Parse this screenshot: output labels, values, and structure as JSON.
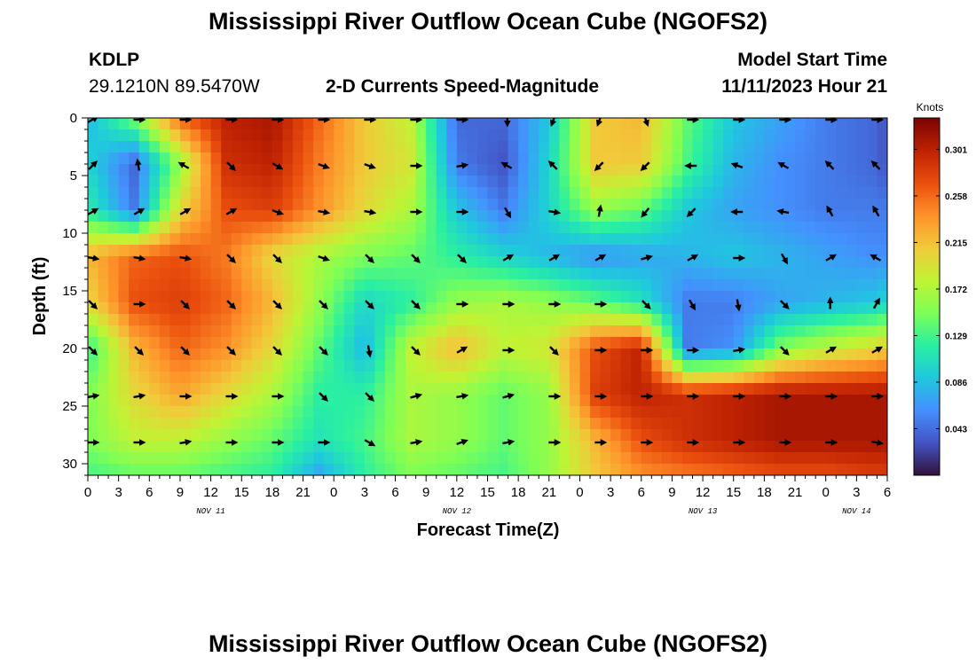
{
  "header": {
    "title": "Mississippi River Outflow Ocean Cube (NGOFS2)",
    "station_id": "KDLP",
    "station_coords": "29.1210N  89.5470W",
    "plot_name": "2-D Currents Speed-Magnitude",
    "model_start_label": "Model Start Time",
    "model_start_value": "11/11/2023 Hour 21"
  },
  "footer": {
    "title": "Mississippi River Outflow Ocean Cube (NGOFS2)"
  },
  "colors": {
    "scale": [
      "#30123b",
      "#4454c4",
      "#4490fe",
      "#1fc8de",
      "#29efa2",
      "#7dff56",
      "#c1f334",
      "#f1ca3a",
      "#fe922a",
      "#ea4e0d",
      "#be2102",
      "#7a0403"
    ]
  },
  "chart_data": {
    "type": "heatmap",
    "ylabel": "Depth (ft)",
    "xlabel": "Forecast Time(Z)",
    "x_tick_labels": [
      "0",
      "3",
      "6",
      "9",
      "12",
      "15",
      "18",
      "21",
      "0",
      "3",
      "6",
      "9",
      "12",
      "15",
      "18",
      "21",
      "0",
      "3",
      "6",
      "9",
      "12",
      "15",
      "18",
      "21",
      "0",
      "3",
      "6"
    ],
    "x_hours": [
      0,
      78
    ],
    "date_labels": [
      {
        "text": "NOV 11",
        "hour": 12
      },
      {
        "text": "NOV 12",
        "hour": 36
      },
      {
        "text": "NOV 13",
        "hour": 60
      },
      {
        "text": "NOV 14",
        "hour": 75
      }
    ],
    "y_ticks": [
      0,
      5,
      10,
      15,
      20,
      25,
      30
    ],
    "ylim": [
      0,
      31
    ],
    "colorbar": {
      "unit": "Knots",
      "ticks": [
        "0.301",
        "0.258",
        "0.215",
        "0.172",
        "0.129",
        "0.086",
        "0.043"
      ],
      "tick_values": [
        0.301,
        0.258,
        0.215,
        0.172,
        0.129,
        0.086,
        0.043
      ],
      "range": [
        0.0,
        0.33
      ]
    },
    "grid_hours": [
      0,
      4.5,
      9,
      13.5,
      18,
      22.5,
      27,
      31.5,
      36,
      40.5,
      45,
      49.5,
      54,
      58.5,
      63,
      67.5,
      72,
      76.5,
      78
    ],
    "grid_depths": [
      0,
      4,
      8,
      12,
      16,
      20,
      24,
      28,
      31
    ],
    "speed_grid": [
      [
        0.08,
        0.15,
        0.26,
        0.3,
        0.31,
        0.26,
        0.21,
        0.18,
        0.04,
        0.04,
        0.09,
        0.21,
        0.22,
        0.14,
        0.09,
        0.07,
        0.05,
        0.04,
        0.03
      ],
      [
        0.1,
        0.04,
        0.16,
        0.29,
        0.3,
        0.25,
        0.21,
        0.19,
        0.05,
        0.03,
        0.1,
        0.21,
        0.21,
        0.13,
        0.08,
        0.06,
        0.05,
        0.04,
        0.03
      ],
      [
        0.12,
        0.05,
        0.2,
        0.27,
        0.28,
        0.24,
        0.2,
        0.17,
        0.09,
        0.05,
        0.1,
        0.16,
        0.14,
        0.09,
        0.07,
        0.06,
        0.05,
        0.05,
        0.05
      ],
      [
        0.22,
        0.26,
        0.27,
        0.25,
        0.2,
        0.17,
        0.15,
        0.14,
        0.12,
        0.1,
        0.08,
        0.06,
        0.07,
        0.08,
        0.09,
        0.08,
        0.07,
        0.06,
        0.06
      ],
      [
        0.2,
        0.27,
        0.28,
        0.26,
        0.22,
        0.16,
        0.1,
        0.12,
        0.16,
        0.17,
        0.16,
        0.14,
        0.11,
        0.05,
        0.05,
        0.07,
        0.08,
        0.09,
        0.1
      ],
      [
        0.12,
        0.22,
        0.26,
        0.24,
        0.2,
        0.14,
        0.08,
        0.18,
        0.22,
        0.18,
        0.19,
        0.27,
        0.3,
        0.05,
        0.06,
        0.15,
        0.18,
        0.2,
        0.21
      ],
      [
        0.15,
        0.2,
        0.23,
        0.2,
        0.17,
        0.12,
        0.12,
        0.17,
        0.16,
        0.14,
        0.16,
        0.28,
        0.3,
        0.29,
        0.3,
        0.31,
        0.31,
        0.31,
        0.31
      ],
      [
        0.15,
        0.18,
        0.18,
        0.16,
        0.14,
        0.11,
        0.13,
        0.17,
        0.16,
        0.14,
        0.16,
        0.22,
        0.27,
        0.29,
        0.3,
        0.31,
        0.31,
        0.31,
        0.31
      ],
      [
        0.13,
        0.14,
        0.14,
        0.13,
        0.12,
        0.07,
        0.12,
        0.15,
        0.14,
        0.13,
        0.16,
        0.21,
        0.24,
        0.25,
        0.26,
        0.27,
        0.27,
        0.28,
        0.28
      ]
    ],
    "arrow_hours": [
      0,
      4.5,
      9,
      13.5,
      18,
      22.5,
      27,
      31.5,
      36,
      40.5,
      45,
      49.5,
      54,
      58.5,
      63,
      67.5,
      72,
      76.5
    ],
    "arrow_depths": [
      0,
      4,
      8,
      12,
      16,
      20,
      24,
      28
    ],
    "arrow_dirs": [
      [
        60,
        90,
        90,
        90,
        90,
        90,
        90,
        90,
        90,
        180,
        200,
        200,
        160,
        90,
        90,
        90,
        90,
        90
      ],
      [
        45,
        350,
        300,
        135,
        120,
        110,
        110,
        90,
        80,
        300,
        315,
        225,
        225,
        270,
        290,
        300,
        315,
        315
      ],
      [
        60,
        60,
        60,
        60,
        110,
        100,
        100,
        90,
        90,
        150,
        100,
        10,
        220,
        225,
        270,
        280,
        330,
        330
      ],
      [
        100,
        100,
        100,
        135,
        135,
        110,
        135,
        135,
        135,
        60,
        60,
        60,
        75,
        60,
        90,
        150,
        60,
        300
      ],
      [
        135,
        90,
        135,
        135,
        135,
        135,
        135,
        135,
        90,
        90,
        90,
        90,
        135,
        150,
        170,
        135,
        0,
        30
      ],
      [
        135,
        135,
        135,
        135,
        135,
        135,
        170,
        135,
        60,
        90,
        135,
        90,
        90,
        90,
        80,
        135,
        60,
        60
      ],
      [
        80,
        80,
        90,
        90,
        90,
        135,
        135,
        75,
        80,
        75,
        90,
        90,
        90,
        90,
        90,
        90,
        90,
        90
      ],
      [
        90,
        90,
        80,
        90,
        90,
        90,
        120,
        80,
        70,
        80,
        90,
        90,
        90,
        90,
        90,
        90,
        90,
        100
      ]
    ]
  }
}
